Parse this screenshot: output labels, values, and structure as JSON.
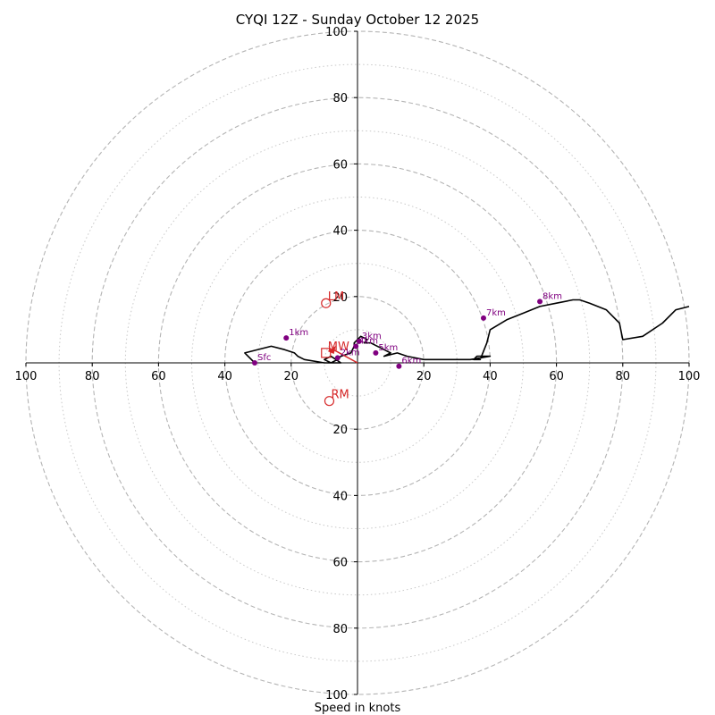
{
  "chart_data": {
    "type": "hodograph",
    "title": "CYQI 12Z - Sunday October 12 2025",
    "xlabel": "Speed in knots",
    "range": [
      -100,
      100
    ],
    "ring_major": [
      20,
      40,
      60,
      80,
      100
    ],
    "ring_minor": [
      10,
      30,
      50,
      70,
      90
    ],
    "x_tick_labels": [
      {
        "value": -100,
        "label": "100"
      },
      {
        "value": -80,
        "label": "80"
      },
      {
        "value": -60,
        "label": "60"
      },
      {
        "value": -40,
        "label": "40"
      },
      {
        "value": -20,
        "label": "20"
      },
      {
        "value": 20,
        "label": "20"
      },
      {
        "value": 40,
        "label": "40"
      },
      {
        "value": 60,
        "label": "60"
      },
      {
        "value": 80,
        "label": "80"
      },
      {
        "value": 100,
        "label": "100"
      }
    ],
    "y_tick_labels": [
      {
        "value": 100,
        "label": "100"
      },
      {
        "value": 80,
        "label": "80"
      },
      {
        "value": 60,
        "label": "60"
      },
      {
        "value": 40,
        "label": "40"
      },
      {
        "value": 20,
        "label": "20"
      },
      {
        "value": -20,
        "label": "20"
      },
      {
        "value": -40,
        "label": "40"
      },
      {
        "value": -60,
        "label": "60"
      },
      {
        "value": -80,
        "label": "80"
      },
      {
        "value": -100,
        "label": "100"
      }
    ],
    "trace": {
      "color": "#000000",
      "u": [
        -31,
        -34,
        -26,
        -22,
        -19,
        -18,
        -16,
        -10,
        -5,
        -8,
        -10,
        -8,
        -6,
        -5,
        -2,
        -1,
        -1,
        1,
        3,
        2,
        4,
        8,
        10,
        8,
        12,
        15,
        20,
        29,
        34,
        40,
        36,
        35,
        37,
        39,
        40,
        45,
        50,
        55,
        60,
        65,
        67,
        70,
        75,
        77,
        79,
        80,
        86,
        92,
        96,
        100
      ],
      "v": [
        0,
        3,
        5,
        4,
        3,
        2,
        1,
        0,
        0,
        2,
        1,
        0,
        1,
        2,
        3,
        5,
        6,
        8,
        7,
        6,
        6,
        4,
        3,
        2,
        3,
        2,
        1,
        1,
        1,
        2,
        2,
        1,
        1,
        6,
        10,
        13,
        15,
        17,
        18,
        19,
        19,
        18,
        16,
        14,
        12,
        7,
        8,
        12,
        16,
        17
      ]
    },
    "height_markers": [
      {
        "label": "Sfc",
        "u": -31,
        "v": 0
      },
      {
        "label": "1km",
        "u": -21.5,
        "v": 7.5
      },
      {
        "label": "2km",
        "u": -6,
        "v": 1.5
      },
      {
        "label": "3km",
        "u": 0.5,
        "v": 6.5
      },
      {
        "label": "4km",
        "u": -0.5,
        "v": 5
      },
      {
        "label": "5km",
        "u": 5.5,
        "v": 3
      },
      {
        "label": "6km",
        "u": 12.5,
        "v": -1
      },
      {
        "label": "7km",
        "u": 38,
        "v": 13.5
      },
      {
        "label": "8km",
        "u": 55,
        "v": 18.5
      }
    ],
    "marker_color": "#800080",
    "storm_motion": [
      {
        "label": "LM",
        "u": -9.5,
        "v": 18
      },
      {
        "label": "MW",
        "u": -9.5,
        "v": 3
      },
      {
        "label": "RM",
        "u": -8.5,
        "v": -11.5
      }
    ],
    "storm_motion_color": "#d62728",
    "motion_arrow": {
      "from_u": 0,
      "from_v": 0,
      "to_u": -9,
      "to_v": 3.5
    }
  }
}
